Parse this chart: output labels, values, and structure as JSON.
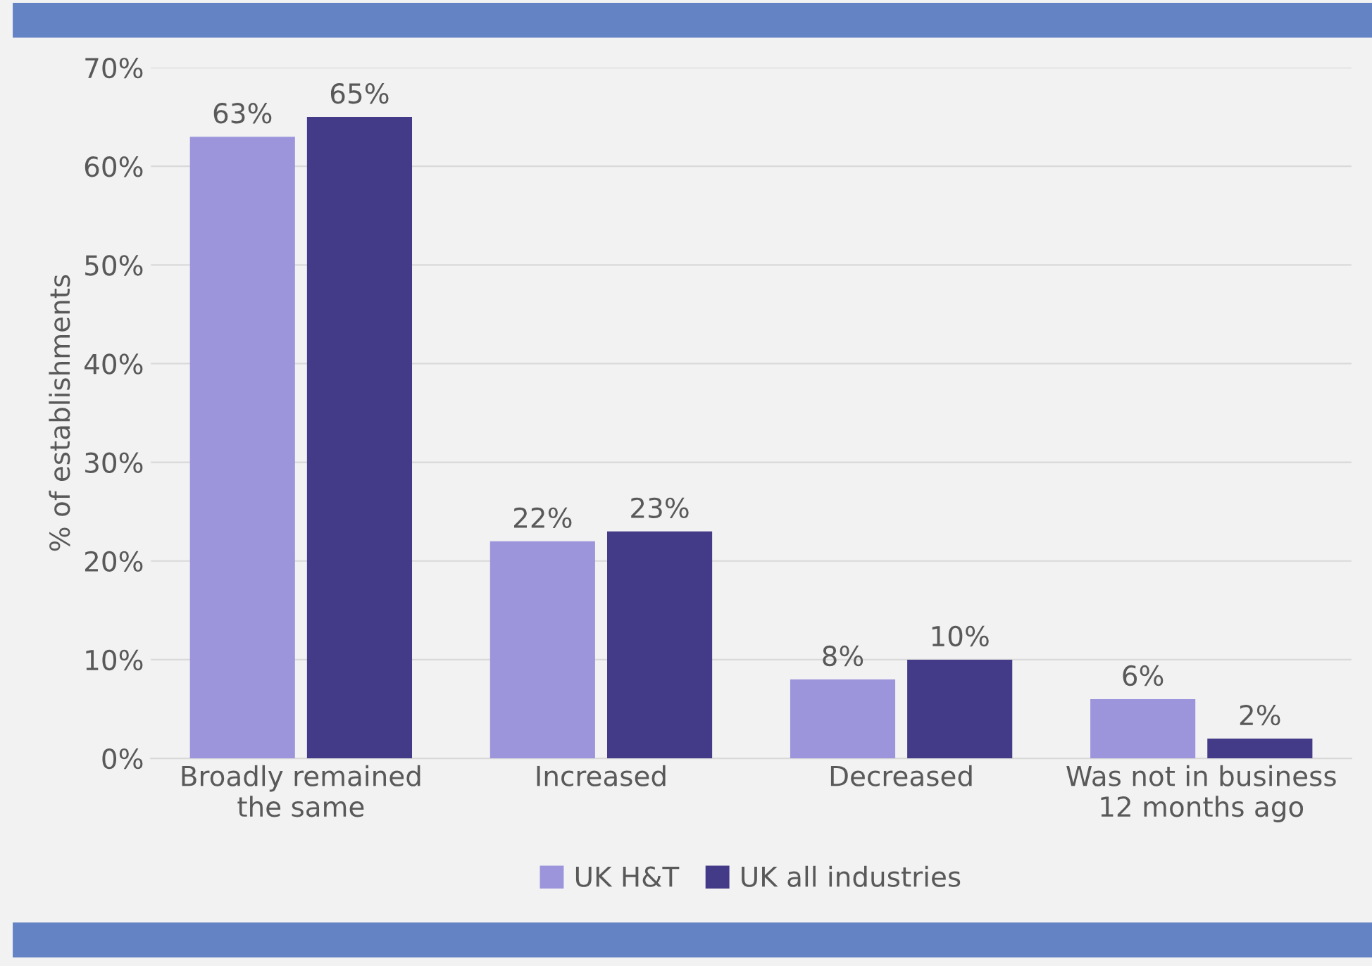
{
  "chart_data": {
    "type": "bar",
    "ylabel": "% of establishments",
    "categories": [
      "Broadly remained\nthe same",
      "Increased",
      "Decreased",
      "Was not in business\n12 months ago"
    ],
    "series": [
      {
        "name": "UK H&T",
        "color": "#9c95dc",
        "values": [
          63,
          22,
          8,
          6
        ],
        "value_labels": [
          "63%",
          "22%",
          "8%",
          "6%"
        ]
      },
      {
        "name": "UK all industries",
        "color": "#433a88",
        "values": [
          65,
          23,
          10,
          2
        ],
        "value_labels": [
          "65%",
          "23%",
          "10%",
          "2%"
        ]
      }
    ],
    "ylim": [
      0,
      70
    ],
    "yticks": [
      {
        "value": 0,
        "label": "0%"
      },
      {
        "value": 10,
        "label": "10%"
      },
      {
        "value": 20,
        "label": "20%"
      },
      {
        "value": 30,
        "label": "30%"
      },
      {
        "value": 40,
        "label": "40%"
      },
      {
        "value": 50,
        "label": "50%"
      },
      {
        "value": 60,
        "label": "60%"
      },
      {
        "value": 70,
        "label": "70%"
      }
    ],
    "grid": "y",
    "legend": "bottom"
  }
}
